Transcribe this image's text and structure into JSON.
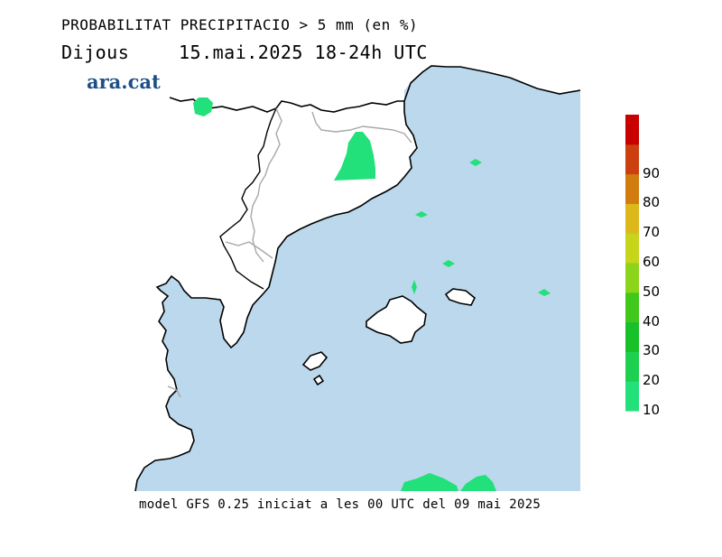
{
  "header": {
    "title": "PROBABILITAT PRECIPITACIO > 5 mm (en %)",
    "day": "Dijous",
    "date_range": "15.mai.2025 18-24h UTC"
  },
  "logo": {
    "text": "ara.cat",
    "color": "#1d4f86"
  },
  "footer": {
    "model_run": "model GFS 0.25 iniciat a les 00 UTC del 09 mai 2025"
  },
  "legend": {
    "labels": [
      "10",
      "20",
      "30",
      "40",
      "50",
      "60",
      "70",
      "80",
      "90"
    ],
    "colors": [
      "#22e07a",
      "#1ed04f",
      "#18c02a",
      "#40c81a",
      "#8cd41a",
      "#c6d41a",
      "#dcb81a",
      "#d27c10",
      "#cc4010",
      "#c80000"
    ]
  },
  "map_colors": {
    "sea": "#bcd8ec",
    "land": "#ffffff",
    "coast": "#000000",
    "border": "#a8a8a8",
    "precip_10_20": "#22e07a"
  }
}
